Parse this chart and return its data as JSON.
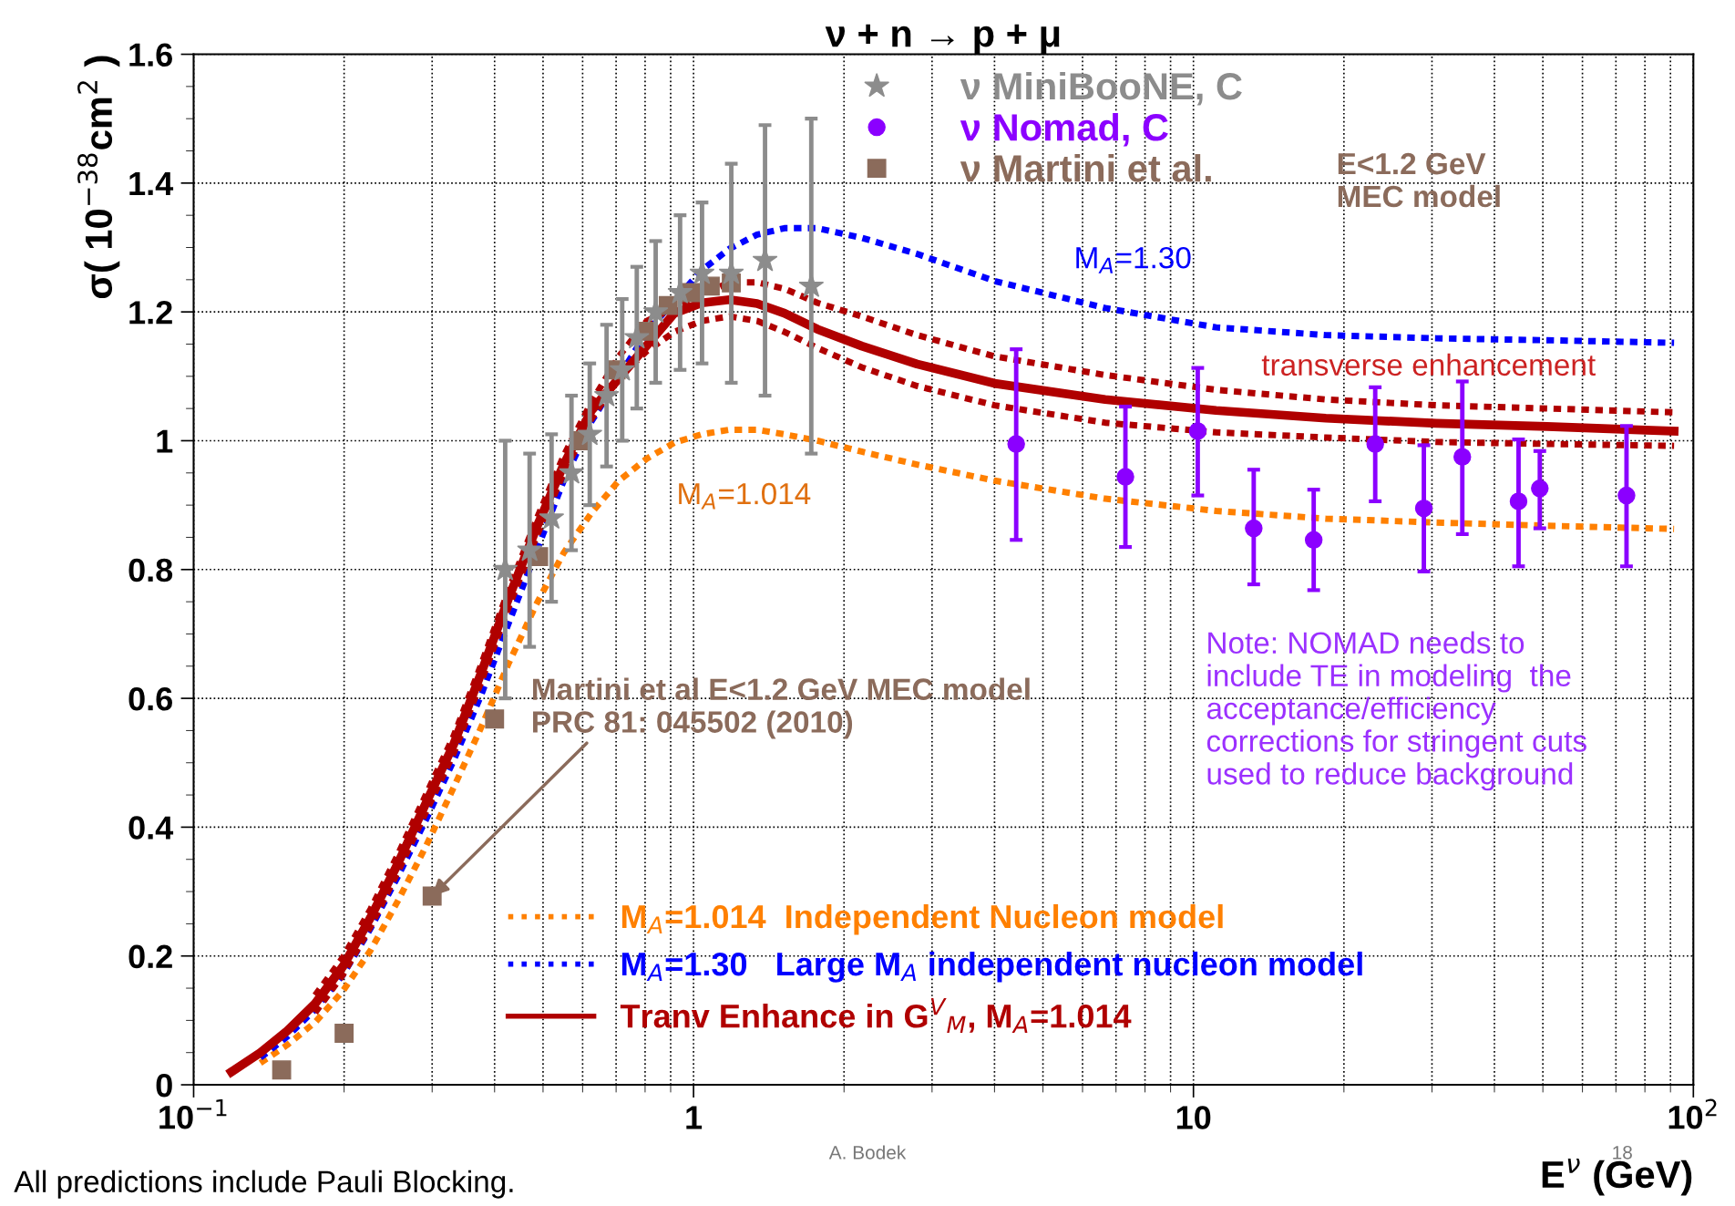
{
  "chart_data": {
    "type": "line",
    "title": "ν + n → p + μ",
    "xlabel": "E$^{ν}$ (GeV)",
    "ylabel": "σ( 10$^{−38}$cm$^{2}$ )",
    "log": "x",
    "xlim": [
      0.1,
      100
    ],
    "xticks": [
      {
        "value": 0.1,
        "label": "10$^{−1}$"
      },
      1,
      10,
      {
        "value": 100,
        "label": "10$^{2}$"
      }
    ],
    "ylim": [
      0,
      1.6
    ],
    "yticks": [
      0,
      0.2,
      0.4,
      0.6,
      0.8,
      1,
      1.2,
      1.4,
      1.6
    ],
    "grid": true,
    "legend": "top",
    "series": [
      {
        "name": "M$_{A}$=1.014  Independent Nucleon model",
        "color": "#ff8000",
        "line_style": "dotted",
        "marker": "none",
        "x": [
          0.136,
          0.154,
          0.175,
          0.199,
          0.226,
          0.256,
          0.291,
          0.331,
          0.375,
          0.426,
          0.484,
          0.55,
          0.625,
          0.709,
          0.806,
          0.915,
          1.039,
          1.18,
          1.34,
          1.52,
          1.77,
          2.17,
          2.8,
          4.0,
          6.66,
          11.1,
          18.4,
          30.6,
          51.0,
          91.5
        ],
        "values": [
          0.034,
          0.062,
          0.097,
          0.146,
          0.209,
          0.285,
          0.369,
          0.461,
          0.553,
          0.653,
          0.745,
          0.826,
          0.888,
          0.938,
          0.972,
          0.997,
          1.01,
          1.017,
          1.017,
          1.01,
          1.0,
          0.983,
          0.963,
          0.938,
          0.91,
          0.891,
          0.879,
          0.873,
          0.868,
          0.863
        ]
      },
      {
        "name": "M$_{A}$=1.30   Large M$_{A}$ independent nucleon model",
        "color": "#0000ff",
        "line_style": "dotted",
        "marker": "none",
        "x": [
          0.136,
          0.154,
          0.175,
          0.199,
          0.226,
          0.256,
          0.291,
          0.331,
          0.375,
          0.426,
          0.55,
          0.625,
          0.806,
          1.039,
          1.18,
          1.34,
          1.52,
          1.77,
          2.17,
          2.8,
          4.0,
          6.66,
          11.1,
          18.4,
          30.6,
          51.0,
          91.5
        ],
        "values": [
          0.042,
          0.075,
          0.117,
          0.171,
          0.243,
          0.323,
          0.41,
          0.503,
          0.603,
          0.715,
          0.938,
          1.03,
          1.169,
          1.265,
          1.298,
          1.32,
          1.33,
          1.33,
          1.315,
          1.29,
          1.248,
          1.206,
          1.176,
          1.164,
          1.159,
          1.156,
          1.152
        ]
      },
      {
        "color": "#b00000",
        "line_style": "dotted",
        "marker": "none",
        "x": [
          0.175,
          0.199,
          0.226,
          0.256,
          0.291,
          0.331,
          0.375,
          0.426,
          0.484,
          0.55,
          0.625,
          0.709,
          0.806,
          1.18,
          1.34,
          1.52,
          1.77,
          2.17,
          2.8,
          4.0,
          6.66,
          11.1,
          18.4,
          30.6,
          51.0,
          91.5
        ],
        "values": [
          0.139,
          0.198,
          0.273,
          0.357,
          0.449,
          0.541,
          0.65,
          0.767,
          0.876,
          0.977,
          1.06,
          1.131,
          1.186,
          1.246,
          1.246,
          1.236,
          1.214,
          1.193,
          1.164,
          1.131,
          1.102,
          1.079,
          1.064,
          1.055,
          1.05,
          1.044
        ]
      },
      {
        "color": "#b00000",
        "line_style": "dotted",
        "marker": "none",
        "x": [
          0.175,
          0.199,
          0.226,
          0.256,
          0.291,
          0.331,
          0.375,
          0.426,
          0.484,
          0.55,
          0.625,
          0.709,
          0.806,
          0.915,
          1.039,
          1.18,
          1.34,
          1.52,
          1.77,
          2.17,
          2.8,
          4.0,
          6.66,
          11.1,
          18.4,
          30.6,
          51.0,
          91.5
        ],
        "values": [
          0.112,
          0.171,
          0.246,
          0.33,
          0.422,
          0.514,
          0.623,
          0.74,
          0.849,
          0.95,
          1.034,
          1.097,
          1.139,
          1.169,
          1.186,
          1.193,
          1.186,
          1.169,
          1.144,
          1.114,
          1.085,
          1.055,
          1.028,
          1.013,
          1.005,
          0.998,
          0.995,
          0.992
        ]
      },
      {
        "name": "Tranv Enhance in G$^{V}$$_{M}$, M$_{A}$=1.014",
        "color": "#b00000",
        "line_style": "solid",
        "marker": "none",
        "x": [
          0.119,
          0.136,
          0.154,
          0.175,
          0.199,
          0.226,
          0.256,
          0.291,
          0.331,
          0.375,
          0.426,
          0.484,
          0.55,
          0.625,
          0.915,
          1.039,
          1.18,
          1.34,
          1.52,
          1.77,
          2.17,
          2.8,
          4.0,
          6.66,
          11.1,
          18.4,
          30.6,
          51.0,
          91.5
        ],
        "values": [
          0.02,
          0.05,
          0.084,
          0.126,
          0.184,
          0.26,
          0.343,
          0.436,
          0.528,
          0.637,
          0.754,
          0.863,
          0.963,
          1.047,
          1.198,
          1.214,
          1.219,
          1.213,
          1.198,
          1.173,
          1.147,
          1.119,
          1.089,
          1.064,
          1.047,
          1.035,
          1.027,
          1.022,
          1.015
        ]
      },
      {
        "name": "ν MiniBooNE, C",
        "type": "scatter",
        "color": "#8c8c8c",
        "marker": "star",
        "x": [
          0.42,
          0.47,
          0.52,
          0.57,
          0.62,
          0.67,
          0.72,
          0.77,
          0.84,
          0.94,
          1.04,
          1.19,
          1.39,
          1.72
        ],
        "values": [
          0.8,
          0.83,
          0.88,
          0.95,
          1.01,
          1.07,
          1.11,
          1.16,
          1.2,
          1.23,
          1.26,
          1.26,
          1.28,
          1.24
        ],
        "errors": [
          [
            0.6,
            1.0
          ],
          [
            0.68,
            0.98
          ],
          [
            0.75,
            1.01
          ],
          [
            0.83,
            1.07
          ],
          [
            0.9,
            1.12
          ],
          [
            0.96,
            1.18
          ],
          [
            1.0,
            1.22
          ],
          [
            1.05,
            1.27
          ],
          [
            1.09,
            1.31
          ],
          [
            1.11,
            1.35
          ],
          [
            1.12,
            1.37
          ],
          [
            1.09,
            1.43
          ],
          [
            1.07,
            1.49
          ],
          [
            0.98,
            1.5
          ]
        ]
      },
      {
        "name": "ν Nomad, C",
        "type": "scatter",
        "color": "#8b00ff",
        "marker": "circle",
        "x": [
          4.42,
          7.31,
          10.2,
          13.2,
          17.4,
          23.1,
          28.9,
          34.5,
          44.7,
          49.3,
          73.5
        ],
        "values": [
          0.995,
          0.944,
          1.015,
          0.864,
          0.846,
          0.995,
          0.895,
          0.975,
          0.906,
          0.926,
          0.915
        ],
        "errors": [
          [
            0.846,
            1.142
          ],
          [
            0.835,
            1.053
          ],
          [
            0.915,
            1.113
          ],
          [
            0.777,
            0.955
          ],
          [
            0.768,
            0.924
          ],
          [
            0.906,
            1.083
          ],
          [
            0.797,
            0.993
          ],
          [
            0.855,
            1.092
          ],
          [
            0.805,
            1.002
          ],
          [
            0.864,
            0.984
          ],
          [
            0.805,
            1.023
          ]
        ]
      },
      {
        "name": "ν Martini et al.",
        "type": "scatter",
        "color": "#8b6b5b",
        "marker": "square",
        "x": [
          0.15,
          0.2,
          0.3,
          0.4,
          0.49,
          0.59,
          0.7,
          0.8,
          0.89,
          0.99,
          1.08,
          1.19
        ],
        "values": [
          0.023,
          0.08,
          0.293,
          0.568,
          0.82,
          1.0,
          1.11,
          1.17,
          1.21,
          1.23,
          1.24,
          1.245
        ]
      }
    ],
    "annotations": [
      "E<1.2 GeV\nMEC model",
      "M$_{A}$=1.30",
      "transverse enhancement",
      "M$_{A}$=1.014",
      {
        "text": "Martini et al E<1.2 GeV MEC model\nPRC 81: 045502 (2010)",
        "x": 0.3,
        "y": 0.293
      },
      "Note: NOMAD needs to\ninclude TE in modeling  the\nacceptance/efficiency\ncorrections for stringent cuts\nused to reduce background",
      "A. Bodek",
      "18",
      "All predictions include Pauli Blocking."
    ]
  }
}
